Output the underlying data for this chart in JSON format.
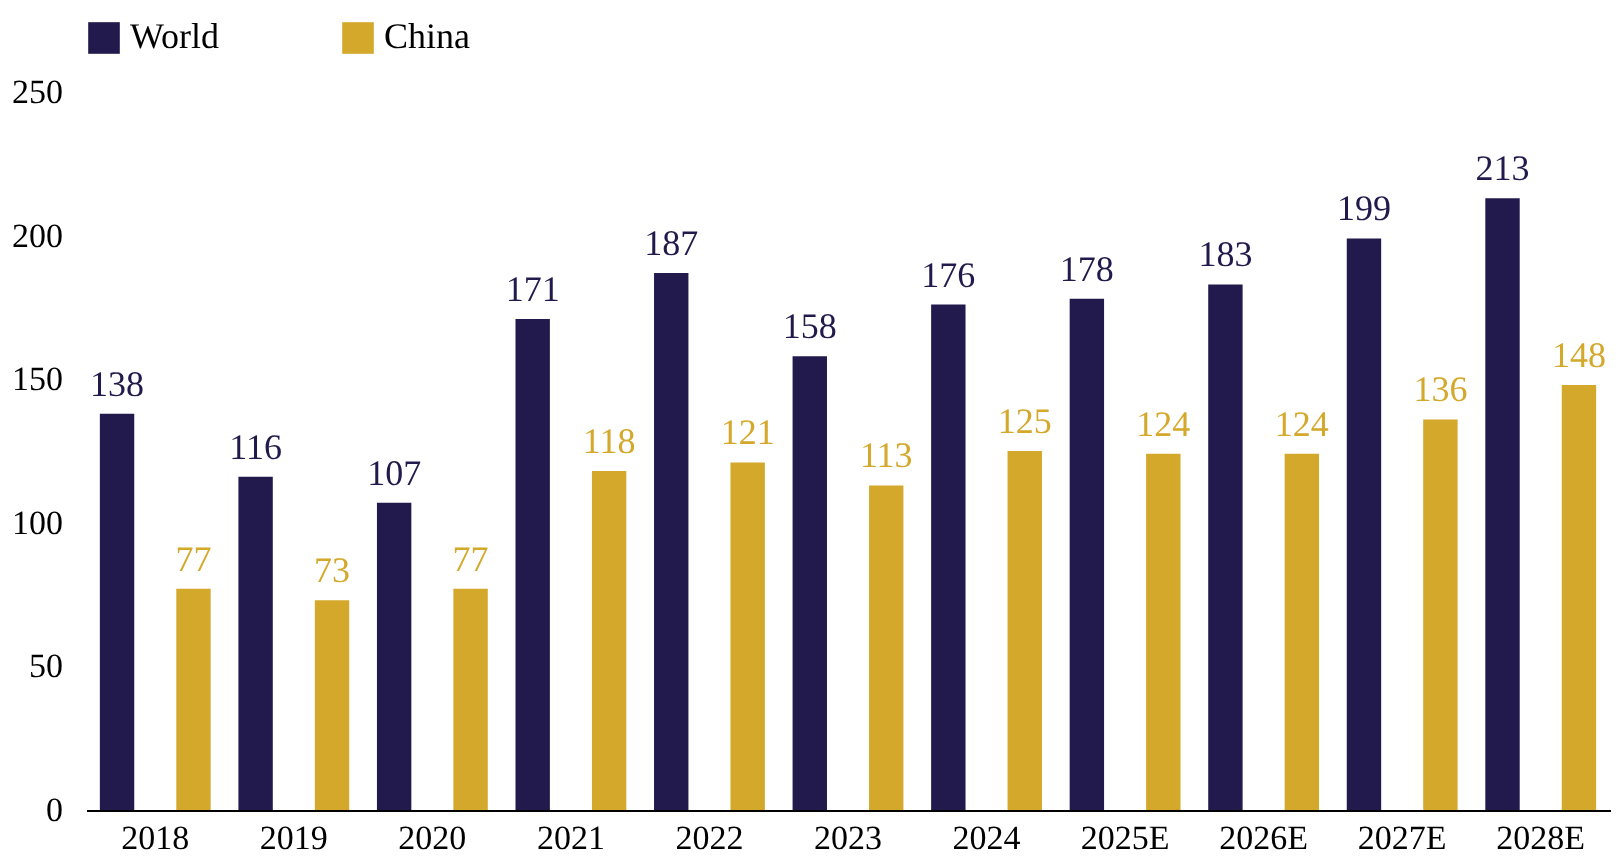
{
  "chart_data": {
    "type": "bar",
    "categories": [
      "2018",
      "2019",
      "2020",
      "2021",
      "2022",
      "2023",
      "2024",
      "2025E",
      "2026E",
      "2027E",
      "2028E"
    ],
    "series": [
      {
        "name": "World",
        "color": "#221a4c",
        "values": [
          138,
          116,
          107,
          171,
          187,
          158,
          176,
          178,
          183,
          199,
          213
        ]
      },
      {
        "name": "China",
        "color": "#d4a82a",
        "values": [
          77,
          73,
          77,
          118,
          121,
          113,
          125,
          124,
          124,
          136,
          148
        ]
      }
    ],
    "ylim": [
      0,
      250
    ],
    "yticks": [
      0,
      50,
      100,
      150,
      200,
      250
    ],
    "grid": false,
    "legend": "top",
    "data_labels": true
  }
}
